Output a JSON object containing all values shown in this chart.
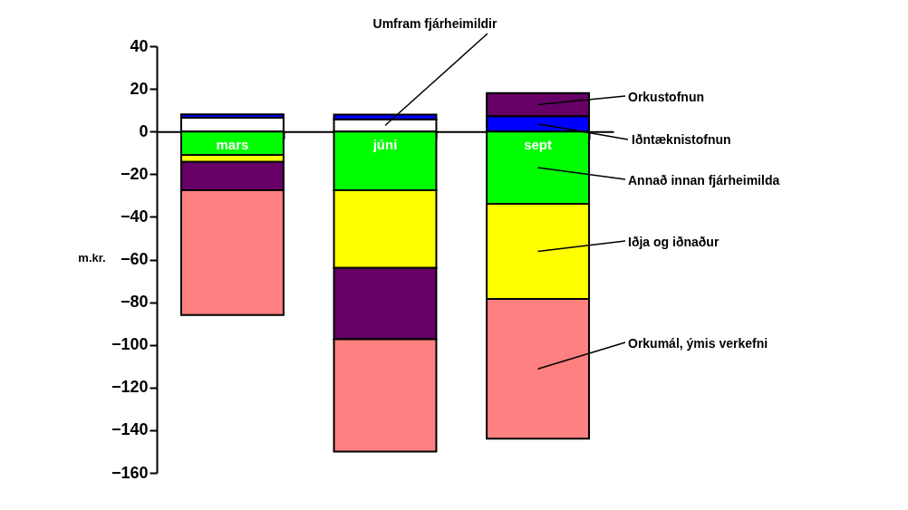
{
  "chart_data": {
    "type": "bar",
    "stacked": true,
    "ylabel": "m.kr.",
    "categories": [
      "mars",
      "júni",
      "sept"
    ],
    "series": [
      {
        "name": "Umfram fjárheimildir",
        "color": "#ffffff",
        "values": [
          6.5,
          5.7,
          null
        ]
      },
      {
        "name": "Iðntæknistofnun",
        "color": "#0000ff",
        "values": [
          1.5,
          2.2,
          7.2
        ]
      },
      {
        "name": "Annað innan fjárheimilda",
        "color": "#00ff00",
        "values": [
          -11,
          -27.5,
          -33.9
        ]
      },
      {
        "name": "Iðja og iðnaður",
        "color": "#ffff00",
        "values": [
          -3.2,
          -36.4,
          -44.6
        ]
      },
      {
        "name": "Orkustofnun",
        "color": "#660066",
        "values": [
          -13.3,
          -33.5,
          10.8
        ]
      },
      {
        "name": "Orkumál, ýmis verkefni",
        "color": "#ff8080",
        "values": [
          -58.5,
          -52.6,
          -65.5
        ]
      }
    ],
    "ylim": [
      -160,
      40
    ],
    "yticks": [
      -160,
      -140,
      -120,
      -100,
      -80,
      -60,
      -40,
      -20,
      0,
      20,
      40
    ],
    "grid": false,
    "legend": false
  }
}
